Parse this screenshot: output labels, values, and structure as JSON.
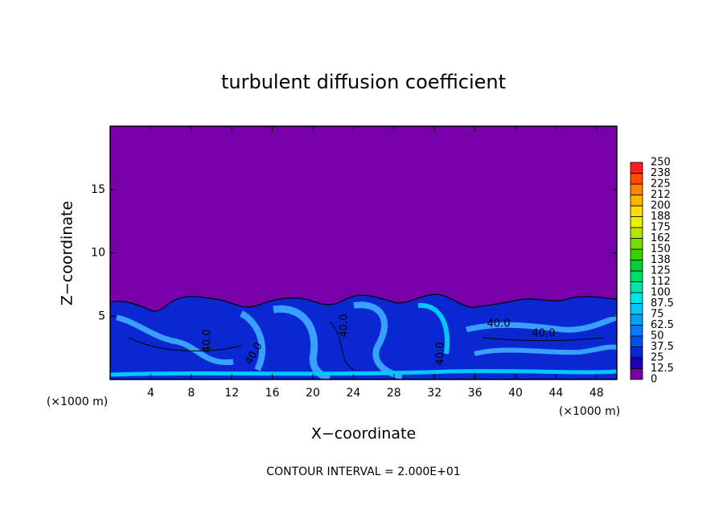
{
  "chart_data": {
    "type": "contour",
    "title": "turbulent diffusion coefficient",
    "x_label": "X−coordinate",
    "y_label": "Z−coordinate",
    "x_unit": "(×1000 m)",
    "annotation": "CONTOUR INTERVAL = 2.000E+01",
    "contour_labels": [
      "40.0",
      "40.0",
      "40.0",
      "40.0",
      "40.0",
      "40.0"
    ],
    "xlim": [
      0,
      50
    ],
    "xticks": [
      4,
      8,
      12,
      16,
      20,
      24,
      28,
      32,
      36,
      40,
      44,
      48
    ],
    "ylim": [
      0,
      20
    ],
    "yticks": [
      5,
      10,
      15
    ],
    "colorbar": {
      "levels": [
        0,
        12.5,
        25,
        37.5,
        50,
        62.5,
        75,
        87.5,
        100,
        112,
        125,
        138,
        150,
        162,
        175,
        188,
        200,
        212,
        225,
        238,
        250
      ],
      "colors": [
        "#7800a8",
        "#1e00b4",
        "#0a28d2",
        "#0050f0",
        "#0a78ff",
        "#00a0ff",
        "#00c8ff",
        "#00e6e6",
        "#00e6aa",
        "#00dc6e",
        "#00d232",
        "#3cd200",
        "#78dc00",
        "#b4e600",
        "#e6f000",
        "#ffdc00",
        "#ffb400",
        "#ff8200",
        "#ff4b00",
        "#ff1e1e",
        "#f07878"
      ]
    }
  }
}
